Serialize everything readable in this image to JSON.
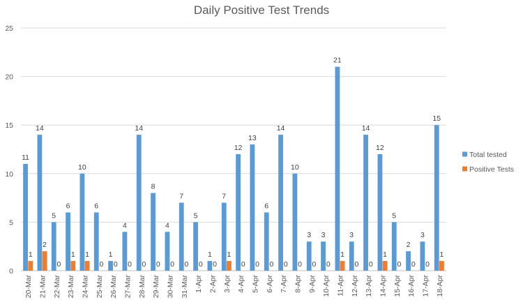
{
  "chart_data": {
    "type": "bar",
    "title": "Daily Positive Test Trends",
    "xlabel": "",
    "ylabel": "",
    "ylim": [
      0,
      25
    ],
    "yticks": [
      0,
      5,
      10,
      15,
      20,
      25
    ],
    "grid": true,
    "legend_position": "right",
    "categories": [
      "20-Mar",
      "21-Mar",
      "22-Mar",
      "23-Mar",
      "24-Mar",
      "25-Mar",
      "26-Mar",
      "27-Mar",
      "28-Mar",
      "29-Mar",
      "30-Mar",
      "31-Mar",
      "1-Apr",
      "2-Apr",
      "3-Apr",
      "4-Apr",
      "5-Apr",
      "6-Apr",
      "7-Apr",
      "8-Apr",
      "9-Apr",
      "10-Apr",
      "11-Apr",
      "12-Apr",
      "13-Apr",
      "14-Apr",
      "15-Apr",
      "16-Apr",
      "17-Apr",
      "18-Apr"
    ],
    "series": [
      {
        "name": "Total tested",
        "color": "#5B9BD5",
        "values": [
          11,
          14,
          5,
          6,
          10,
          6,
          1,
          4,
          14,
          8,
          4,
          7,
          5,
          1,
          7,
          12,
          13,
          6,
          14,
          10,
          3,
          3,
          21,
          3,
          14,
          12,
          5,
          2,
          3,
          15
        ]
      },
      {
        "name": "Positive Tests",
        "color": "#ED7D31",
        "values": [
          1,
          2,
          0,
          1,
          1,
          0,
          0,
          0,
          0,
          0,
          0,
          0,
          0,
          0,
          1,
          0,
          0,
          0,
          0,
          0,
          0,
          0,
          1,
          0,
          0,
          1,
          0,
          0,
          0,
          1
        ]
      }
    ]
  }
}
